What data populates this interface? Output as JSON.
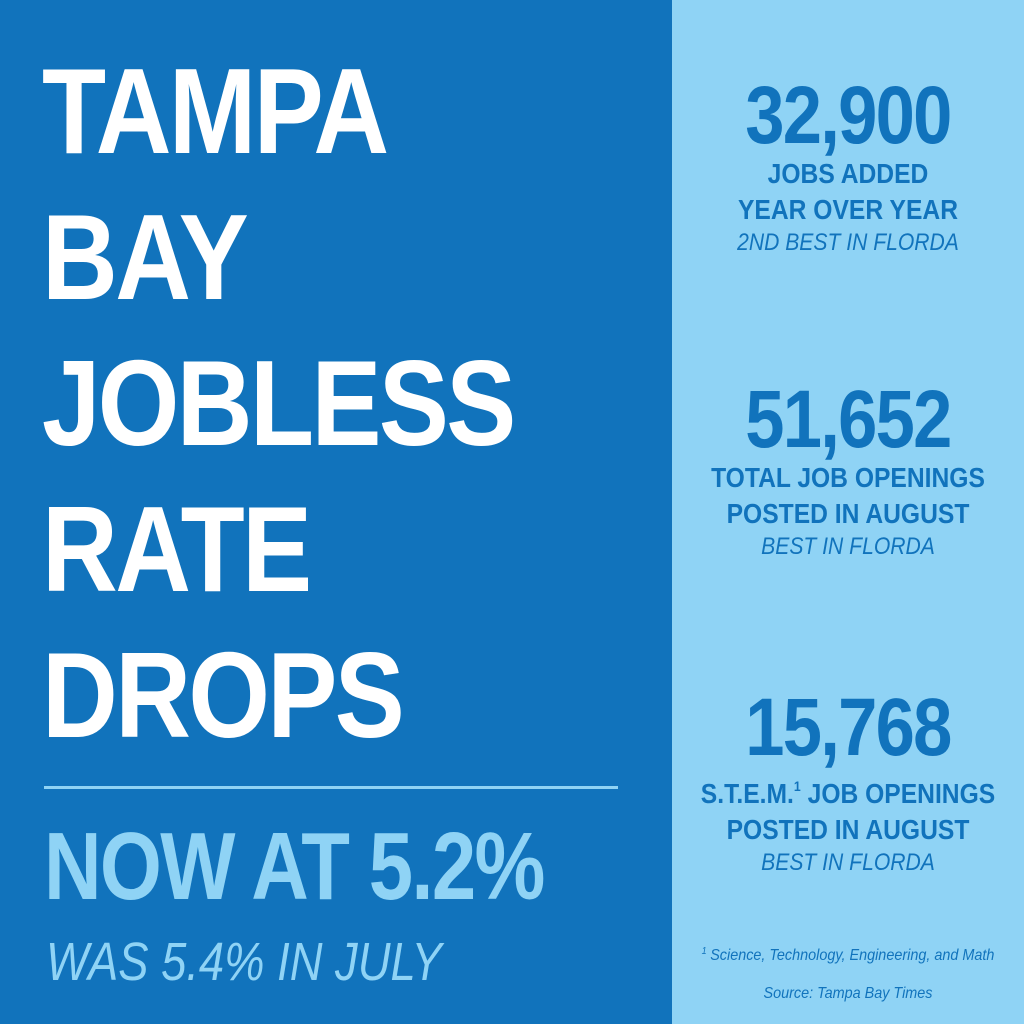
{
  "headline": {
    "lines": [
      "TAMPA",
      "BAY",
      "JOBLESS",
      "RATE",
      "DROPS"
    ]
  },
  "current_rate": "NOW AT 5.2%",
  "previous_rate": "WAS 5.4% IN JULY",
  "stats": [
    {
      "number": "32,900",
      "label_lines": [
        "JOBS ADDED",
        "YEAR OVER YEAR"
      ],
      "note": "2ND BEST IN FLORDA"
    },
    {
      "number": "51,652",
      "label_lines": [
        "TOTAL JOB OPENINGS",
        "POSTED IN AUGUST"
      ],
      "note": "BEST IN FLORDA"
    },
    {
      "number": "15,768",
      "label_prefix": "S.T.E.M.",
      "label_marker": "1",
      "label_suffix": " JOB OPENINGS",
      "label_line2": "POSTED IN AUGUST",
      "note": "BEST IN FLORDA"
    }
  ],
  "footnote": {
    "marker": "1",
    "text": "Science, Technology, Engineering, and Math"
  },
  "source": "Source: Tampa Bay Times",
  "colors": {
    "dark_blue": "#1173bc",
    "light_blue": "#8fd3f5",
    "white": "#ffffff"
  }
}
